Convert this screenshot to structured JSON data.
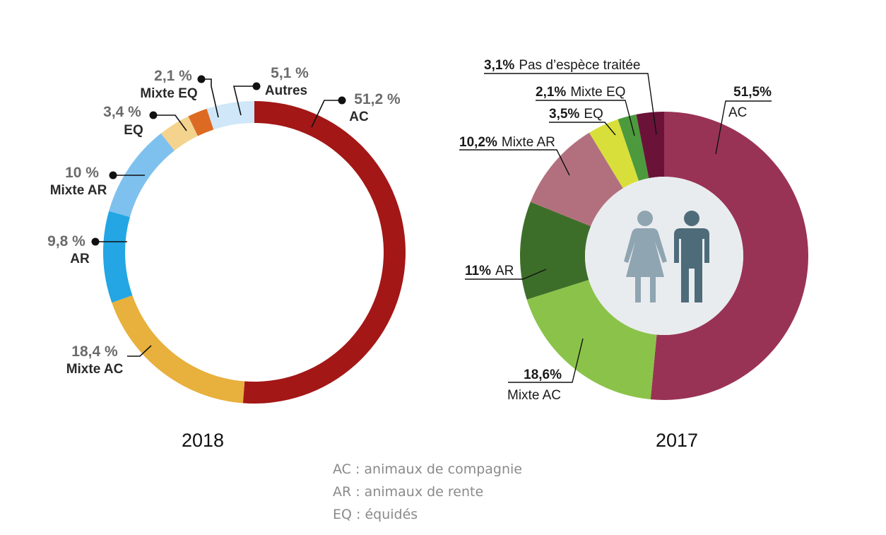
{
  "colors": {
    "ac_2018": "#a31717",
    "mixte_ac_2018": "#e8b03c",
    "ar_2018": "#23a6e3",
    "mixte_ar_2018": "#7fc1ee",
    "eq_2018": "#f3d38e",
    "mixte_eq_2018": "#dd6a23",
    "autres_2018": "#cfe7f8",
    "ac_2017": "#993355",
    "mixte_ac_2017": "#8bc34a",
    "ar_2017": "#3d6e29",
    "mixte_ar_2017": "#b2707e",
    "eq_2017": "#d9df3a",
    "mixte_eq_2017": "#4c9a3d",
    "pas_espece_2017": "#6a1238",
    "center_circle_2017": "#e9ecef",
    "woman_icon": "#8fa5b1",
    "man_icon": "#4e6b79"
  },
  "icons": [
    "woman-icon",
    "man-icon"
  ],
  "chart_data": [
    {
      "type": "pie",
      "title": "2018",
      "categories": [
        "AC",
        "Mixte AC",
        "AR",
        "Mixte AR",
        "EQ",
        "Mixte EQ",
        "Autres"
      ],
      "values": [
        51.2,
        18.4,
        9.8,
        10,
        3.4,
        2.1,
        5.1
      ],
      "value_labels": [
        "51,2 %",
        "18,4 %",
        "9,8 %",
        "10 %",
        "3,4 %",
        "2,1 %",
        "5,1 %"
      ]
    },
    {
      "type": "pie",
      "title": "2017",
      "categories": [
        "AC",
        "Mixte AC",
        "AR",
        "Mixte AR",
        "EQ",
        "Mixte EQ",
        "Pas d’espèce traitée"
      ],
      "values": [
        51.5,
        18.6,
        11,
        10.2,
        3.5,
        2.1,
        3.1
      ],
      "value_labels": [
        "51,5%",
        "18,6%",
        "11%",
        "10,2%",
        "3,5%",
        "2,1%",
        "3,1%"
      ]
    }
  ],
  "legend": [
    "AC : animaux de compagnie",
    "AR : animaux de rente",
    "EQ : équidés"
  ]
}
